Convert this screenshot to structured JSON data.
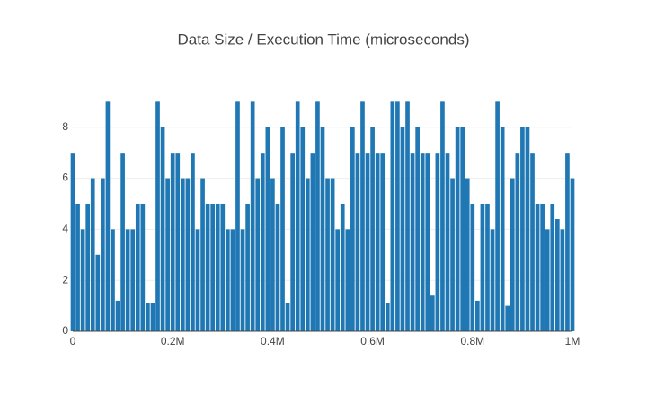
{
  "chart_data": {
    "type": "bar",
    "title": "Data Size / Execution Time (microseconds)",
    "x": [
      0,
      10000,
      20000,
      30000,
      40000,
      50000,
      60000,
      70000,
      80000,
      90000,
      100000,
      110000,
      120000,
      130000,
      140000,
      150000,
      160000,
      170000,
      180000,
      190000,
      200000,
      210000,
      220000,
      230000,
      240000,
      250000,
      260000,
      270000,
      280000,
      290000,
      300000,
      310000,
      320000,
      330000,
      340000,
      350000,
      360000,
      370000,
      380000,
      390000,
      400000,
      410000,
      420000,
      430000,
      440000,
      450000,
      460000,
      470000,
      480000,
      490000,
      500000,
      510000,
      520000,
      530000,
      540000,
      550000,
      560000,
      570000,
      580000,
      590000,
      600000,
      610000,
      620000,
      630000,
      640000,
      650000,
      660000,
      670000,
      680000,
      690000,
      700000,
      710000,
      720000,
      730000,
      740000,
      750000,
      760000,
      770000,
      780000,
      790000,
      800000,
      810000,
      820000,
      830000,
      840000,
      850000,
      860000,
      870000,
      880000,
      890000,
      900000,
      910000,
      920000,
      930000,
      940000,
      950000,
      960000,
      970000,
      980000,
      990000,
      1000000
    ],
    "values": [
      7,
      5,
      4,
      5,
      6,
      3,
      6,
      9,
      4,
      1.2,
      7,
      4,
      4,
      5,
      5,
      1.1,
      1.1,
      9,
      8,
      6,
      7,
      7,
      6,
      6,
      7,
      4,
      6,
      5,
      5,
      5,
      5,
      4,
      4,
      9,
      4,
      5,
      9,
      6,
      7,
      8,
      6,
      5,
      8,
      1.1,
      7,
      9,
      8,
      6,
      7,
      9,
      8,
      6,
      6,
      4,
      5,
      4,
      8,
      7,
      9,
      7,
      8,
      7,
      7,
      1.1,
      9,
      9,
      8,
      9,
      7,
      8,
      7,
      7,
      1.4,
      7,
      9,
      7,
      6,
      8,
      8,
      6,
      5,
      1.2,
      5,
      5,
      4,
      9,
      8,
      1,
      6,
      7,
      8,
      8,
      7,
      5,
      5,
      4,
      5,
      4.4,
      4,
      7,
      6
    ],
    "color": "#1f77b4",
    "xlim": [
      0,
      1000000
    ],
    "xticks": [
      0,
      {
        "value": 200000,
        "label": "0.2M"
      },
      {
        "value": 400000,
        "label": "0.4M"
      },
      {
        "value": 600000,
        "label": "0.6M"
      },
      {
        "value": 800000,
        "label": "0.8M"
      },
      {
        "value": 1000000,
        "label": "1M"
      }
    ],
    "ylim": [
      0,
      9.47
    ],
    "yticks": [
      0,
      2,
      4,
      6,
      8
    ],
    "grid": true
  }
}
